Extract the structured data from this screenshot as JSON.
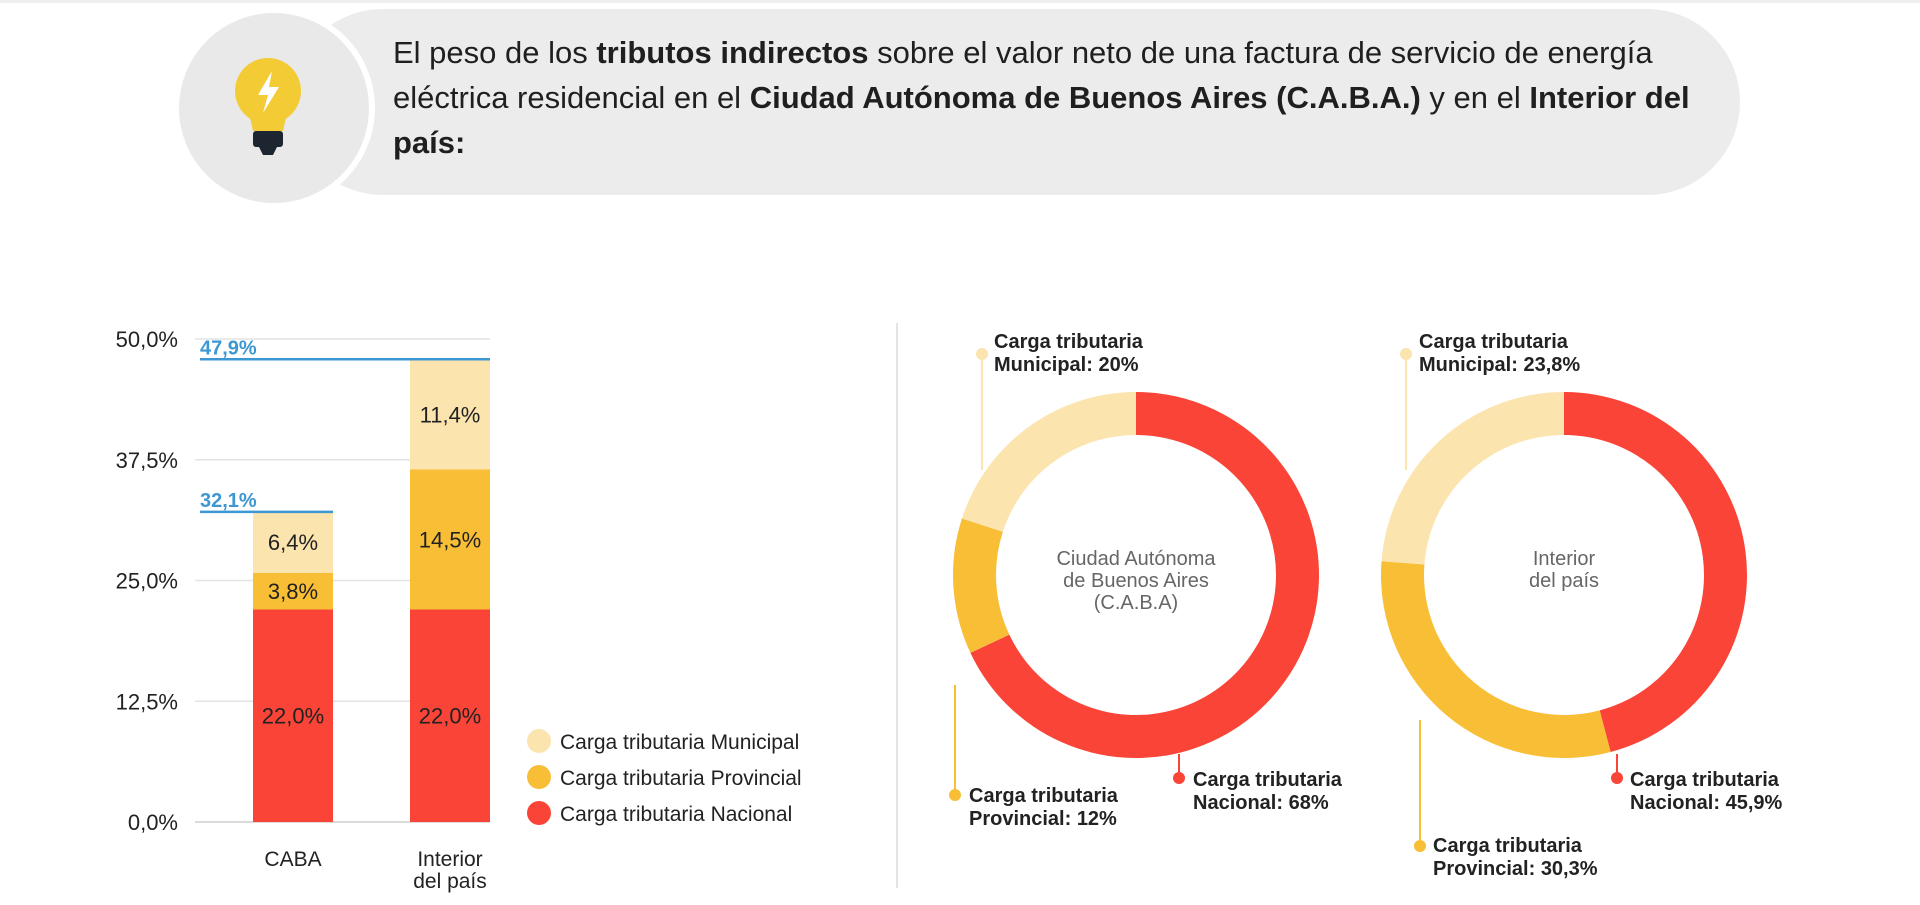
{
  "header": {
    "text_parts": [
      {
        "text": "El peso de los ",
        "bold": false
      },
      {
        "text": "tributos indirectos",
        "bold": true
      },
      {
        "text": " sobre el valor neto de una factura de servicio de energía eléctrica residencial en el ",
        "bold": false
      },
      {
        "text": "Ciudad Autónoma de Buenos Aires (C.A.B.A.)",
        "bold": true
      },
      {
        "text": " y en el ",
        "bold": false
      },
      {
        "text": "Interior del país:",
        "bold": true
      }
    ],
    "icon": "lightbulb-icon"
  },
  "colors": {
    "municipal": "#fbe4ae",
    "provincial": "#f8be35",
    "nacional": "#fa4437",
    "total_line": "#3d97d3"
  },
  "chart_data": [
    {
      "type": "bar",
      "stacked": true,
      "categories": [
        "CABA",
        "Interior\ndel país"
      ],
      "series": [
        {
          "name": "Carga tributaria Nacional",
          "values": [
            22.0,
            22.0
          ],
          "labels": [
            "22,0%",
            "22,0%"
          ]
        },
        {
          "name": "Carga tributaria Provincial",
          "values": [
            3.8,
            14.5
          ],
          "labels": [
            "3,8%",
            "14,5%"
          ]
        },
        {
          "name": "Carga tributaria Municipal",
          "values": [
            6.4,
            11.4
          ],
          "labels": [
            "6,4%",
            "11,4%"
          ]
        }
      ],
      "totals": [
        32.1,
        47.9
      ],
      "total_labels": [
        "32,1%",
        "47,9%"
      ],
      "ylim": [
        0,
        50
      ],
      "yticks": [
        0,
        12.5,
        25,
        37.5,
        50
      ],
      "ytick_labels": [
        "0,0%",
        "12,5%",
        "25,0%",
        "37,5%",
        "50,0%"
      ],
      "legend": [
        "Carga tributaria Municipal",
        "Carga tributaria Provincial",
        "Carga tributaria Nacional"
      ],
      "legend_position": "bottom-right",
      "grid": true
    },
    {
      "type": "pie",
      "donut": true,
      "center_label": "Ciudad Autónoma\nde Buenos Aires\n(C.A.B.A)",
      "slices": [
        {
          "name": "Nacional",
          "value": 68,
          "label": "Carga tributaria\nNacional: 68%"
        },
        {
          "name": "Provincial",
          "value": 12,
          "label": "Carga tributaria\nProvincial: 12%"
        },
        {
          "name": "Municipal",
          "value": 20,
          "label": "Carga tributaria\nMunicipal: 20%"
        }
      ]
    },
    {
      "type": "pie",
      "donut": true,
      "center_label": "Interior\ndel país",
      "slices": [
        {
          "name": "Nacional",
          "value": 45.9,
          "label": "Carga tributaria\nNacional: 45,9%"
        },
        {
          "name": "Provincial",
          "value": 30.3,
          "label": "Carga tributaria\nProvincial: 30,3%"
        },
        {
          "name": "Municipal",
          "value": 23.8,
          "label": "Carga tributaria\nMunicipal: 23,8%"
        }
      ]
    }
  ]
}
